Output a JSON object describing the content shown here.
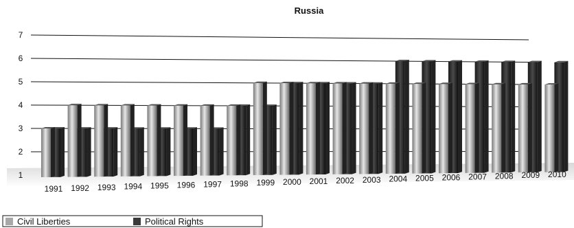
{
  "chart_data": {
    "type": "bar",
    "title": "Russia",
    "categories": [
      "1991",
      "1992",
      "1993",
      "1994",
      "1995",
      "1996",
      "1997",
      "1998",
      "1999",
      "2000",
      "2001",
      "2002",
      "2003",
      "2004",
      "2005",
      "2006",
      "2007",
      "2008",
      "2009",
      "2010"
    ],
    "series": [
      {
        "name": "Civil Liberties",
        "color": "#a8a8a8",
        "values": [
          3,
          4,
          4,
          4,
          4,
          4,
          4,
          4,
          5,
          5,
          5,
          5,
          5,
          5,
          5,
          5,
          5,
          5,
          5,
          5
        ]
      },
      {
        "name": "Political Rights",
        "color": "#3a3a3a",
        "values": [
          3,
          3,
          3,
          3,
          3,
          3,
          3,
          4,
          4,
          5,
          5,
          5,
          5,
          6,
          6,
          6,
          6,
          6,
          6,
          6
        ]
      }
    ],
    "ylim": [
      1,
      7
    ],
    "yticks": [
      1,
      2,
      3,
      4,
      5,
      6,
      7
    ],
    "legend_position": "bottom-left"
  }
}
